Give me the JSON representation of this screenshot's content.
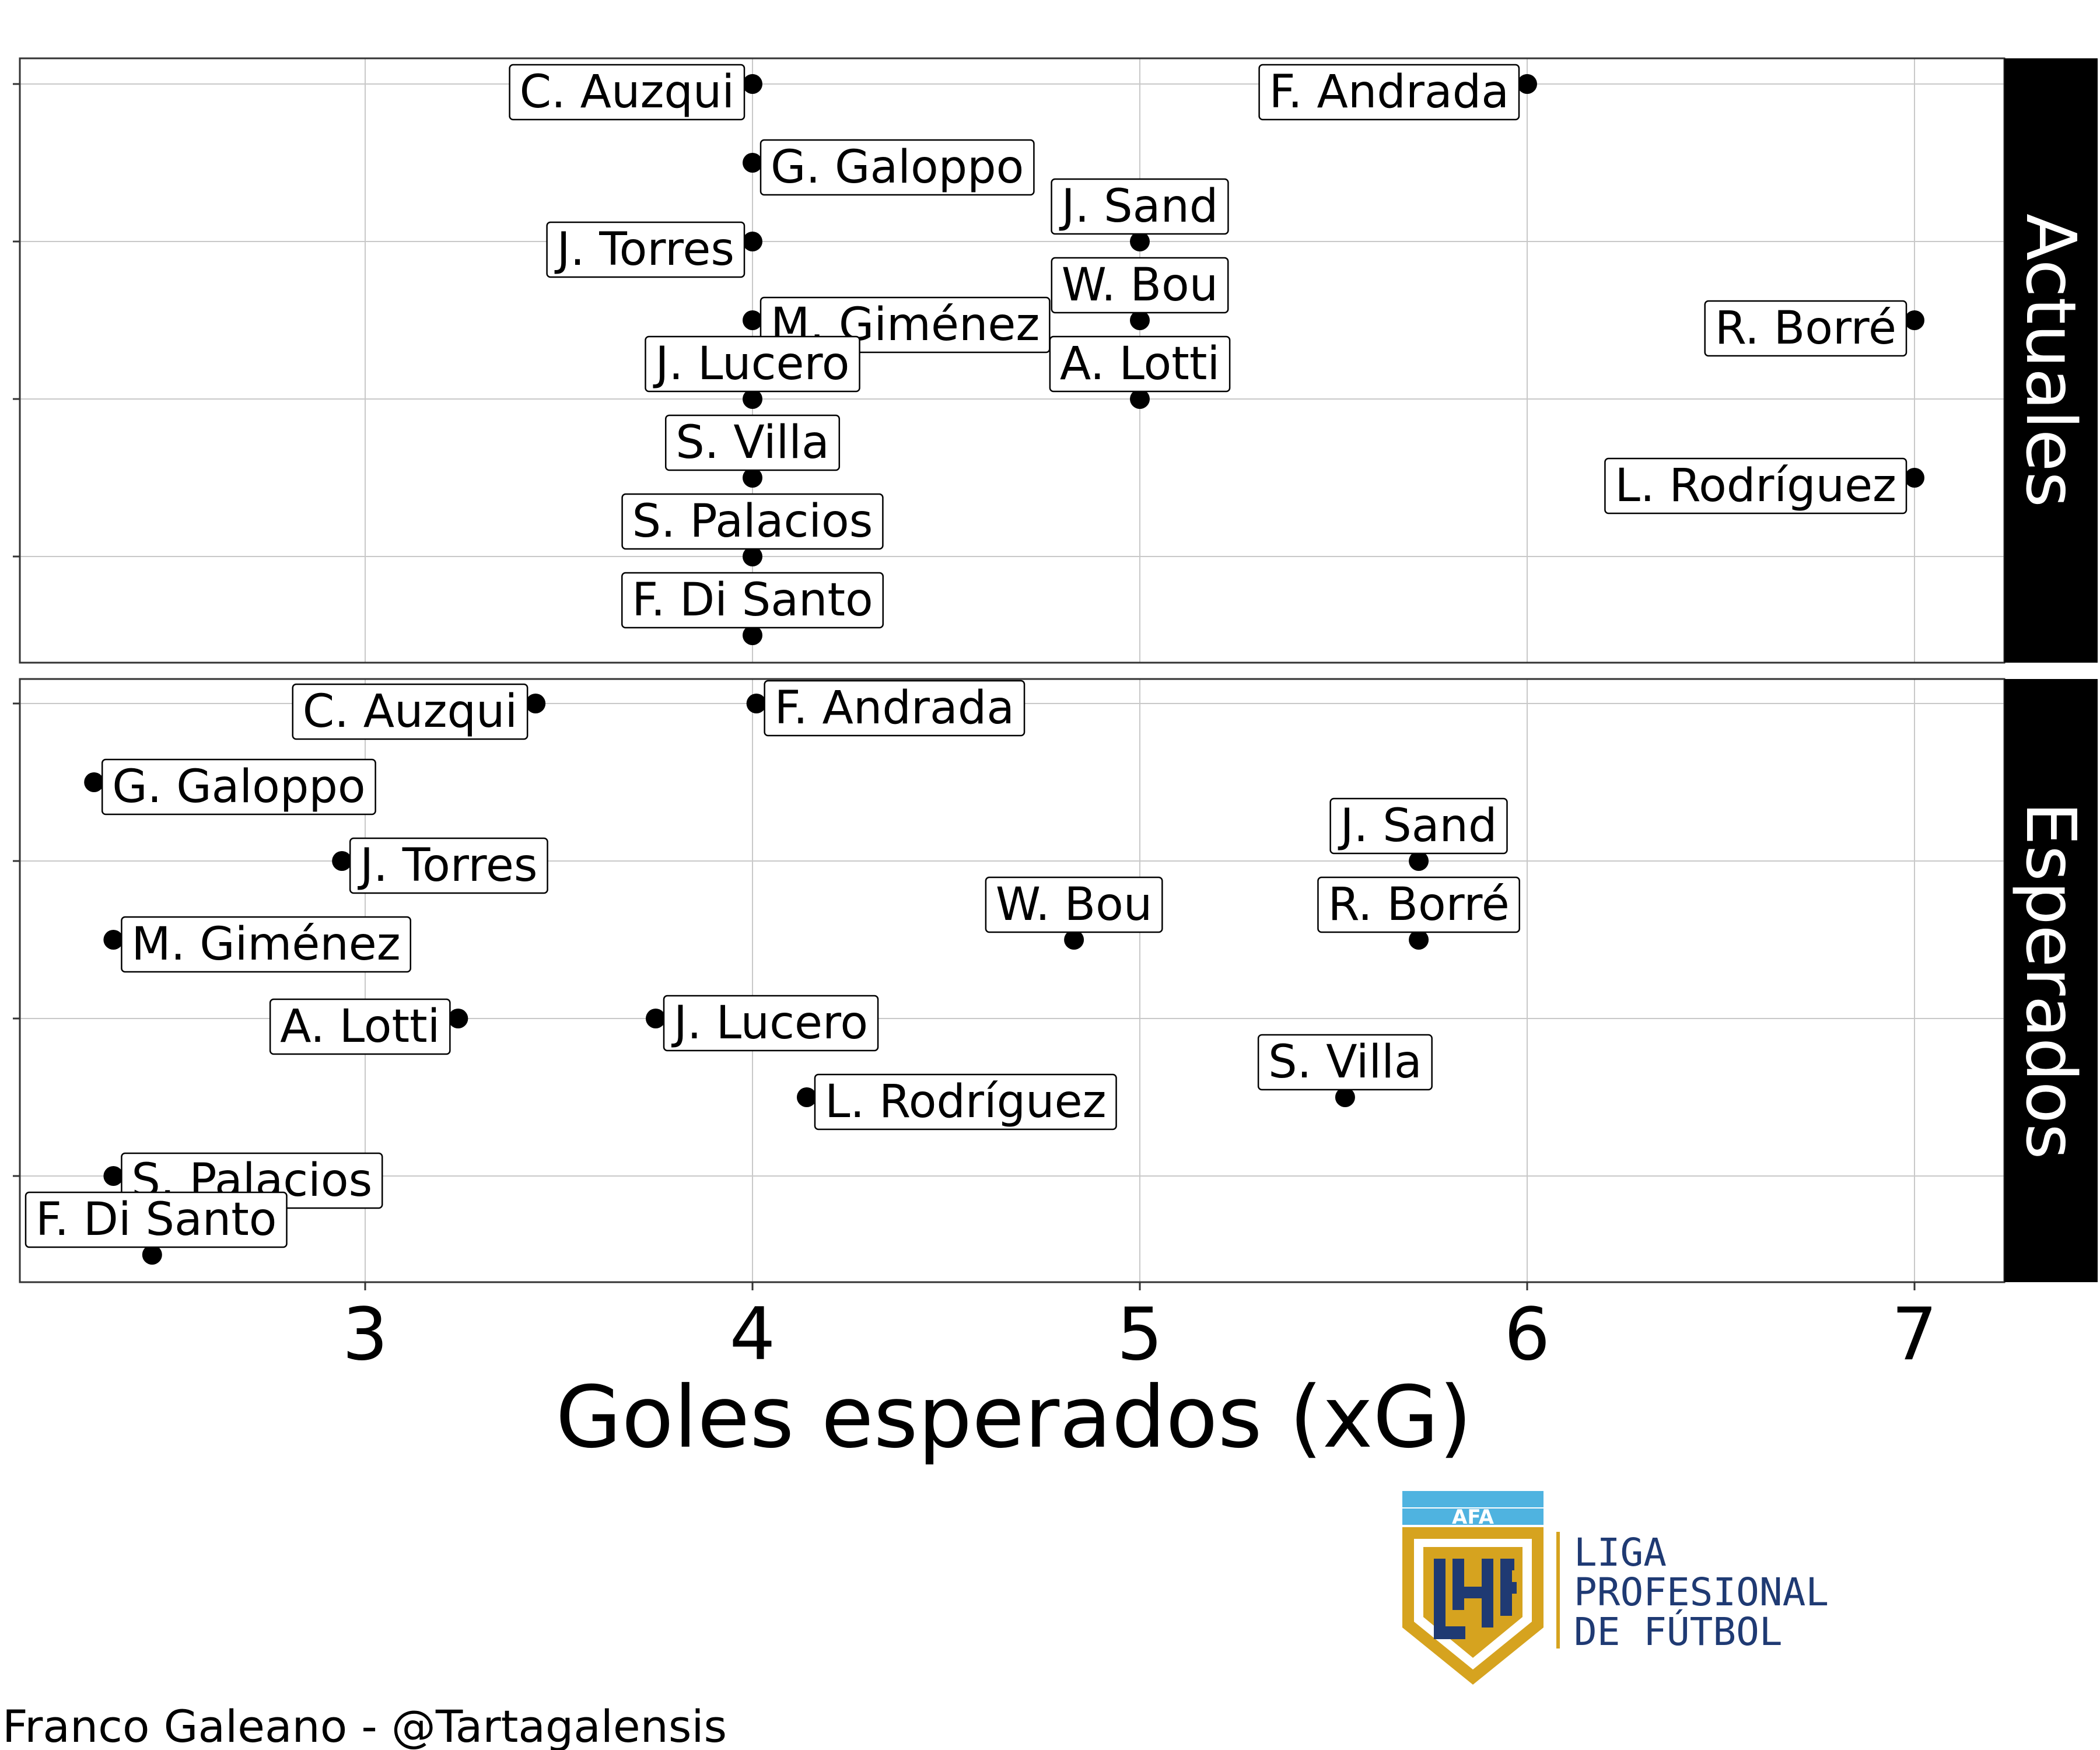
{
  "chart_data": {
    "type": "scatter",
    "xlabel": "Goles esperados (xG)",
    "xlim": [
      2.1,
      7.25
    ],
    "xticks": [
      3,
      4,
      5,
      6,
      7
    ],
    "grid": true,
    "panels": [
      {
        "name": "Actuales",
        "points": [
          {
            "name": "C. Auzqui",
            "x": 4.0,
            "row": 1,
            "side": "left"
          },
          {
            "name": "F. Andrada",
            "x": 6.0,
            "row": 1,
            "side": "left"
          },
          {
            "name": "G. Galoppo",
            "x": 4.0,
            "row": 2,
            "side": "right"
          },
          {
            "name": "J. Torres",
            "x": 4.0,
            "row": 3,
            "side": "left"
          },
          {
            "name": "J. Sand",
            "x": 5.0,
            "row": 3,
            "side": "center"
          },
          {
            "name": "M. Giménez",
            "x": 4.0,
            "row": 4,
            "side": "right"
          },
          {
            "name": "W. Bou",
            "x": 5.0,
            "row": 4,
            "side": "center"
          },
          {
            "name": "R. Borré",
            "x": 7.0,
            "row": 4,
            "side": "left"
          },
          {
            "name": "J. Lucero",
            "x": 4.0,
            "row": 5,
            "side": "center"
          },
          {
            "name": "A. Lotti",
            "x": 5.0,
            "row": 5,
            "side": "center"
          },
          {
            "name": "S. Villa",
            "x": 4.0,
            "row": 6,
            "side": "center"
          },
          {
            "name": "L. Rodríguez",
            "x": 7.0,
            "row": 6,
            "side": "left"
          },
          {
            "name": "S. Palacios",
            "x": 4.0,
            "row": 7,
            "side": "center"
          },
          {
            "name": "F. Di Santo",
            "x": 4.0,
            "row": 8,
            "side": "center"
          }
        ]
      },
      {
        "name": "Esperados",
        "points": [
          {
            "name": "C. Auzqui",
            "x": 3.44,
            "row": 1,
            "side": "left"
          },
          {
            "name": "F. Andrada",
            "x": 4.01,
            "row": 1,
            "side": "right"
          },
          {
            "name": "G. Galoppo",
            "x": 2.3,
            "row": 2,
            "side": "right"
          },
          {
            "name": "J. Torres",
            "x": 2.94,
            "row": 3,
            "side": "right"
          },
          {
            "name": "J. Sand",
            "x": 5.72,
            "row": 3,
            "side": "center"
          },
          {
            "name": "M. Giménez",
            "x": 2.35,
            "row": 4,
            "side": "right"
          },
          {
            "name": "W. Bou",
            "x": 4.83,
            "row": 4,
            "side": "center"
          },
          {
            "name": "R. Borré",
            "x": 5.72,
            "row": 4,
            "side": "center"
          },
          {
            "name": "A. Lotti",
            "x": 3.24,
            "row": 5,
            "side": "left"
          },
          {
            "name": "J. Lucero",
            "x": 3.75,
            "row": 5,
            "side": "right"
          },
          {
            "name": "L. Rodríguez",
            "x": 4.14,
            "row": 6,
            "side": "right"
          },
          {
            "name": "S. Villa",
            "x": 5.53,
            "row": 6,
            "side": "center"
          },
          {
            "name": "S. Palacios",
            "x": 2.35,
            "row": 7,
            "side": "right"
          },
          {
            "name": "F. Di Santo",
            "x": 2.45,
            "row": 8,
            "side": "center"
          }
        ]
      }
    ]
  },
  "credit": "Franco Galeano - @Tartagalensis",
  "logo": {
    "badge_text": "AFA",
    "lines": [
      "LIGA",
      "PROFESIONAL",
      "DE FÚTBOL"
    ],
    "colors": {
      "gold": "#d6a31f",
      "blue": "#1f3a73",
      "sky": "#4fb3e0"
    }
  }
}
